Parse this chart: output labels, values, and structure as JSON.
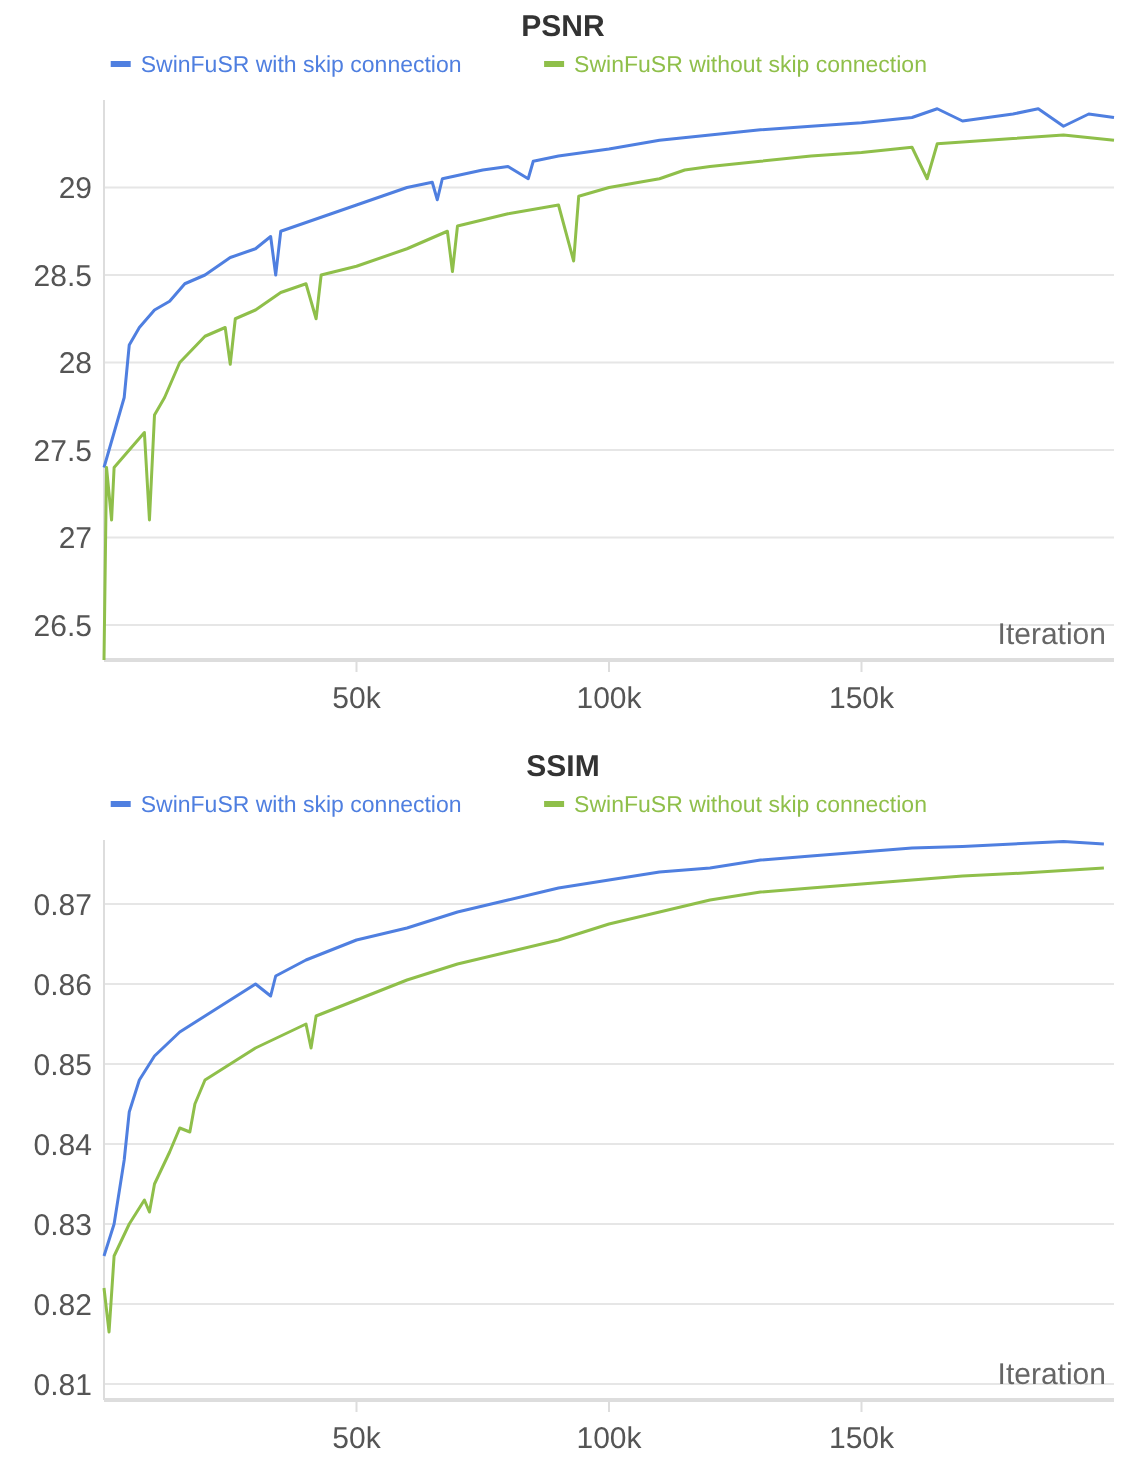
{
  "chart_data": [
    {
      "type": "line",
      "title": "PSNR",
      "xlabel": "Iteration",
      "legend": "top",
      "grid": "y",
      "xlim": [
        0,
        200000
      ],
      "ylim": [
        26.3,
        29.5
      ],
      "xticks": [
        {
          "value": 50000,
          "label": "50k"
        },
        {
          "value": 100000,
          "label": "100k"
        },
        {
          "value": 150000,
          "label": "150k"
        }
      ],
      "yticks": [
        26.5,
        27,
        27.5,
        28,
        28.5,
        29
      ],
      "series": [
        {
          "name": "SwinFuSR with skip connection",
          "color": "#4f7fe0",
          "x": [
            0,
            2000,
            4000,
            5000,
            7000,
            10000,
            13000,
            16000,
            20000,
            25000,
            30000,
            33000,
            34000,
            35000,
            40000,
            45000,
            50000,
            55000,
            60000,
            65000,
            66000,
            67000,
            75000,
            80000,
            84000,
            85000,
            90000,
            95000,
            100000,
            110000,
            120000,
            130000,
            140000,
            150000,
            160000,
            165000,
            170000,
            180000,
            185000,
            190000,
            195000,
            200000
          ],
          "values": [
            27.4,
            27.6,
            27.8,
            28.1,
            28.2,
            28.3,
            28.35,
            28.45,
            28.5,
            28.6,
            28.65,
            28.72,
            28.5,
            28.75,
            28.8,
            28.85,
            28.9,
            28.95,
            29.0,
            29.03,
            28.93,
            29.05,
            29.1,
            29.12,
            29.05,
            29.15,
            29.18,
            29.2,
            29.22,
            29.27,
            29.3,
            29.33,
            29.35,
            29.37,
            29.4,
            29.45,
            29.38,
            29.42,
            29.45,
            29.35,
            29.42,
            29.4
          ]
        },
        {
          "name": "SwinFuSR without skip connection",
          "color": "#8fbf4a",
          "x": [
            0,
            500,
            1500,
            2000,
            5000,
            8000,
            9000,
            10000,
            12000,
            15000,
            20000,
            24000,
            25000,
            26000,
            30000,
            35000,
            40000,
            42000,
            43000,
            50000,
            60000,
            68000,
            69000,
            70000,
            80000,
            90000,
            93000,
            94000,
            100000,
            110000,
            115000,
            120000,
            130000,
            140000,
            150000,
            160000,
            163000,
            165000,
            180000,
            190000,
            200000
          ],
          "values": [
            26.3,
            27.4,
            27.1,
            27.4,
            27.5,
            27.6,
            27.1,
            27.7,
            27.8,
            28.0,
            28.15,
            28.2,
            27.99,
            28.25,
            28.3,
            28.4,
            28.45,
            28.25,
            28.5,
            28.55,
            28.65,
            28.75,
            28.52,
            28.78,
            28.85,
            28.9,
            28.58,
            28.95,
            29.0,
            29.05,
            29.1,
            29.12,
            29.15,
            29.18,
            29.2,
            29.23,
            29.05,
            29.25,
            29.28,
            29.3,
            29.27
          ]
        }
      ]
    },
    {
      "type": "line",
      "title": "SSIM",
      "xlabel": "Iteration",
      "legend": "top",
      "grid": "y",
      "xlim": [
        0,
        200000
      ],
      "ylim": [
        0.808,
        0.878
      ],
      "xticks": [
        {
          "value": 50000,
          "label": "50k"
        },
        {
          "value": 100000,
          "label": "100k"
        },
        {
          "value": 150000,
          "label": "150k"
        }
      ],
      "yticks": [
        0.81,
        0.82,
        0.83,
        0.84,
        0.85,
        0.86,
        0.87
      ],
      "series": [
        {
          "name": "SwinFuSR with skip connection",
          "color": "#4f7fe0",
          "x": [
            0,
            2000,
            4000,
            5000,
            7000,
            10000,
            15000,
            20000,
            25000,
            30000,
            33000,
            34000,
            40000,
            50000,
            60000,
            70000,
            80000,
            90000,
            100000,
            110000,
            120000,
            130000,
            140000,
            150000,
            160000,
            170000,
            180000,
            190000,
            198000
          ],
          "values": [
            0.826,
            0.83,
            0.838,
            0.844,
            0.848,
            0.851,
            0.854,
            0.856,
            0.858,
            0.86,
            0.8585,
            0.861,
            0.863,
            0.8655,
            0.867,
            0.869,
            0.8705,
            0.872,
            0.873,
            0.874,
            0.8745,
            0.8755,
            0.876,
            0.8765,
            0.877,
            0.8772,
            0.8775,
            0.8778,
            0.8775
          ]
        },
        {
          "name": "SwinFuSR without skip connection",
          "color": "#8fbf4a",
          "x": [
            0,
            1000,
            2000,
            5000,
            8000,
            9000,
            10000,
            13000,
            15000,
            17000,
            18000,
            20000,
            25000,
            30000,
            40000,
            41000,
            42000,
            50000,
            60000,
            70000,
            80000,
            90000,
            100000,
            110000,
            120000,
            130000,
            140000,
            150000,
            160000,
            170000,
            180000,
            190000,
            198000
          ],
          "values": [
            0.822,
            0.8165,
            0.826,
            0.83,
            0.833,
            0.8315,
            0.835,
            0.839,
            0.842,
            0.8415,
            0.845,
            0.848,
            0.85,
            0.852,
            0.855,
            0.852,
            0.856,
            0.858,
            0.8605,
            0.8625,
            0.864,
            0.8655,
            0.8675,
            0.869,
            0.8705,
            0.8715,
            0.872,
            0.8725,
            0.873,
            0.8735,
            0.8738,
            0.8742,
            0.8745
          ]
        }
      ]
    }
  ]
}
